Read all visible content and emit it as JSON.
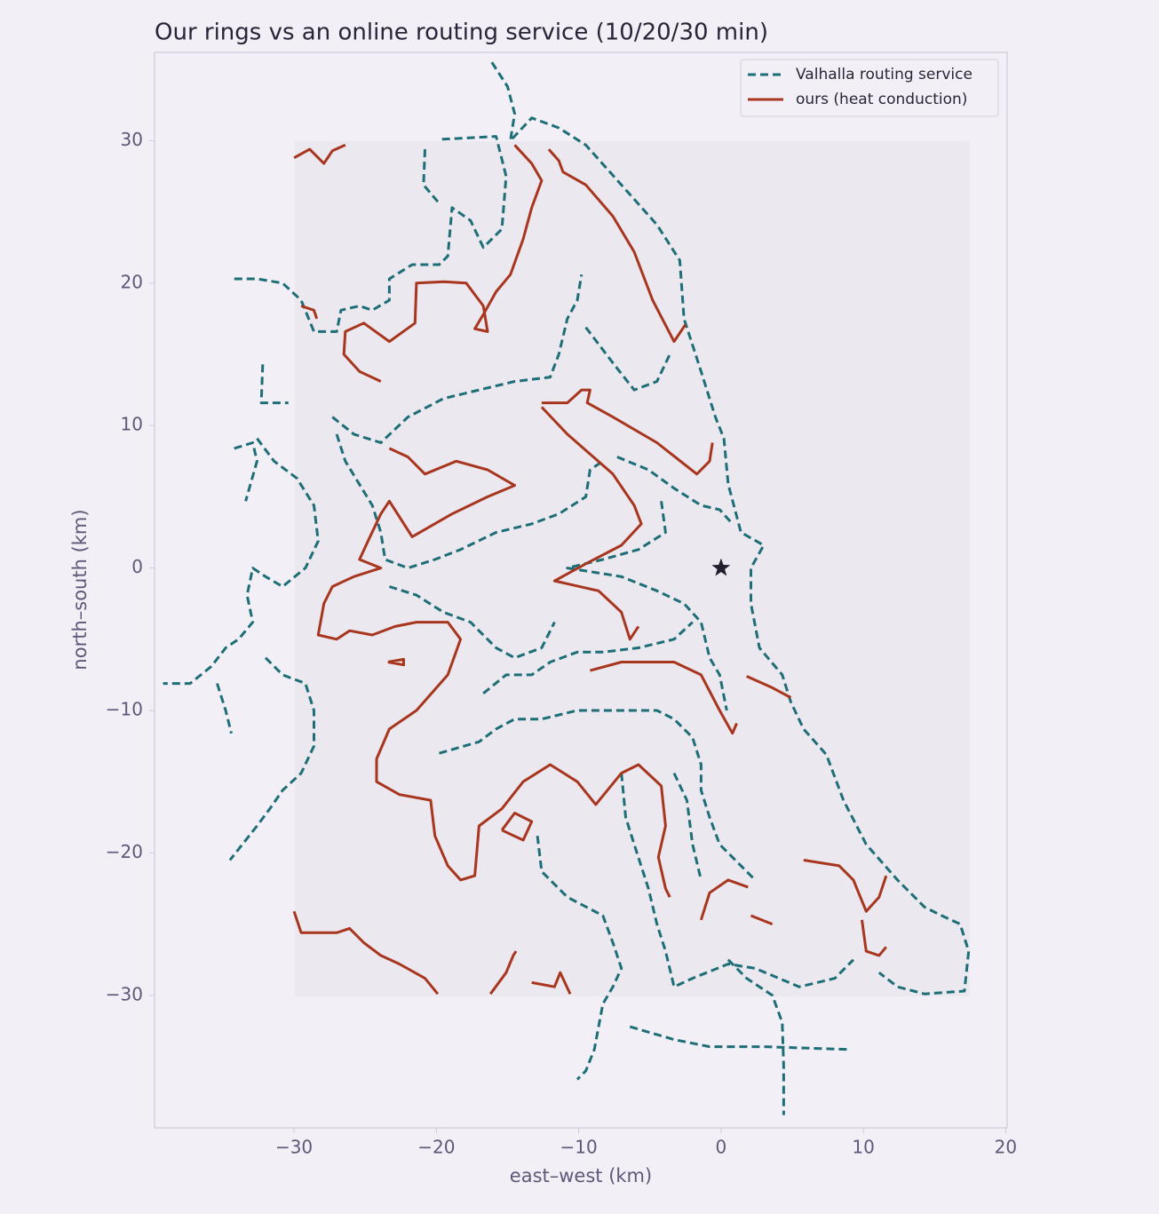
{
  "chart_data": {
    "type": "line",
    "title": "Our rings vs an online routing service (10/20/30 min)",
    "x_label": "east–west (km)",
    "y_label": "north–south (km)",
    "xlim": [
      -39.8,
      20.1
    ],
    "ylim": [
      -39.3,
      36.2
    ],
    "xticks": [
      {
        "value": -30,
        "label": "−30"
      },
      {
        "value": -20,
        "label": "−20"
      },
      {
        "value": -10,
        "label": "−10"
      },
      0,
      10,
      20
    ],
    "yticks": [
      {
        "value": -30,
        "label": "−30"
      },
      {
        "value": -20,
        "label": "−20"
      },
      {
        "value": -10,
        "label": "−10"
      },
      0,
      10,
      20,
      30
    ],
    "grid": false,
    "legend": "upper right",
    "center": {
      "x": 0,
      "y": 0,
      "marker": "star",
      "color": "#231d2e"
    },
    "series": [
      {
        "name": "Valhalla routing service",
        "color": "#1e6e77",
        "style": "dashed",
        "x": [
          -16.1,
          -15,
          -14.5,
          -14.8,
          -13.3,
          -11.4,
          -9.5,
          -7,
          -4.5,
          -2.9,
          -2.6,
          -1.4,
          -0.4,
          0.2,
          0.5,
          1.4,
          3,
          2.1,
          2.1,
          2.7,
          4.3,
          4.9,
          5.8,
          7.4,
          8.6,
          10.2,
          12.4,
          14.3,
          15.5,
          16.8,
          17.4,
          17.1,
          14.3,
          12.4,
          11.1,
          null,
          -19.6,
          -15.8,
          -15.1,
          -15.4,
          -16.7,
          -17.6,
          -18.9,
          -19.2,
          -19.8,
          -21.7,
          -23.3,
          -23.3,
          -24.5,
          -25.4,
          -26.7,
          -27,
          -28.6,
          -29.5,
          -30.8,
          -32.6,
          -34.2,
          null,
          -20.8,
          -20.9,
          -19.8,
          null,
          -32.2,
          -32.3,
          -30.4,
          null,
          -34.2,
          -32.9,
          -32.6,
          -33.4,
          null,
          -32.6,
          -31.4,
          -29.8,
          -28.6,
          -28.3,
          -29.2,
          -30.8,
          -32,
          -32.9,
          -33.3,
          -32.9,
          -33.9,
          -34.8,
          -35.8,
          -37.3,
          -39.2,
          null,
          -35.4,
          -34.8,
          -34.4,
          null,
          -32,
          -30.8,
          -29.2,
          -28.6,
          -28.6,
          -29.5,
          -30.8,
          -31.7,
          -32.6,
          -34.5,
          null,
          -27.3,
          -25.8,
          -23.9,
          -22,
          -19.5,
          -17,
          -14.5,
          -12,
          -11.4,
          -10.8,
          -10.1,
          -9.8,
          null,
          -9.5,
          -7.6,
          -6.1,
          -4.5,
          -3.6,
          null,
          -27,
          -26.4,
          -24.5,
          -23.9,
          -23.6,
          -22,
          -20.1,
          -18.3,
          -15.8,
          -13.3,
          -11.4,
          -9.5,
          -9.2,
          -8.3,
          null,
          -7.3,
          -5.1,
          -3.3,
          -1.4,
          -0.1,
          0.8,
          null,
          -4.2,
          -3.9,
          -5.8,
          -8.3,
          -10.8,
          -7,
          -4.5,
          -2.6,
          -1.4,
          -0.8,
          -0.1,
          0.4,
          null,
          -23.3,
          -21.4,
          -19.5,
          -17.6,
          -15.8,
          -14.5,
          -12.6,
          -11.7,
          null,
          -16.7,
          -15.1,
          -13.3,
          -12,
          -10.1,
          -8.3,
          -5.8,
          -3.3,
          -2,
          null,
          -19.8,
          -17,
          -15.8,
          -14.5,
          -12.6,
          -10.1,
          -7,
          -4.5,
          -3.3,
          -2,
          -1.4,
          -1.4,
          -0.8,
          -0.1,
          1.1,
          2.4,
          null,
          -12.9,
          -12.6,
          -10.8,
          -8.3,
          -7.6,
          -7,
          -7.6,
          -8.3,
          -8.9,
          -9.5,
          -10.1,
          null,
          -6.4,
          -3.3,
          -0.8,
          3,
          9.1,
          null,
          0.5,
          1.8,
          3.6,
          4.3,
          4.4,
          4.4,
          null,
          -7,
          -6.7,
          -6.1,
          -5.1,
          -4.5,
          -3.9,
          -3.3,
          -2,
          0.5,
          2.4,
          5.5,
          8,
          9.3,
          null,
          -3.3,
          -2.4,
          -2,
          -1.4
        ],
        "values": [
          35.5,
          33.8,
          31.9,
          30,
          31.6,
          30.9,
          29.7,
          26.9,
          24.1,
          21.6,
          17.5,
          13.8,
          10.6,
          9.1,
          5.9,
          2.5,
          1.6,
          0,
          -2.5,
          -5.6,
          -7.5,
          -9.4,
          -11.3,
          -13.1,
          -16.3,
          -19.4,
          -21.9,
          -23.8,
          -24.4,
          -25,
          -26.9,
          -29.7,
          -29.9,
          -29.4,
          -28.4,
          null,
          30.1,
          30.3,
          27.5,
          23.8,
          22.5,
          24.4,
          25.3,
          21.9,
          21.3,
          21.3,
          20.3,
          18.8,
          18.1,
          18.4,
          18.1,
          16.6,
          16.6,
          18.8,
          20,
          20.3,
          20.3,
          null,
          29.4,
          26.9,
          25.6,
          null,
          14.3,
          11.6,
          11.6,
          null,
          8.4,
          8.8,
          7.5,
          4.7,
          null,
          9.1,
          7.5,
          6.3,
          4.4,
          1.9,
          0,
          -1.3,
          -0.6,
          0,
          -1.9,
          -3.8,
          -5,
          -5.6,
          -6.9,
          -8.1,
          -8.1,
          null,
          -8.1,
          -10,
          -11.6,
          null,
          -6.3,
          -7.5,
          -8.1,
          -10,
          -12.5,
          -14.4,
          -15.6,
          -16.9,
          -18.1,
          -20.5,
          null,
          10.6,
          9.4,
          8.8,
          10.6,
          11.9,
          12.5,
          13.1,
          13.4,
          15,
          17.5,
          18.8,
          20.6,
          null,
          16.9,
          14.4,
          12.5,
          13.1,
          15,
          null,
          9.4,
          7.5,
          4.4,
          2.5,
          0.6,
          0,
          0.6,
          1.3,
          2.5,
          3.1,
          3.8,
          5,
          6.9,
          7.5,
          null,
          7.8,
          6.9,
          5.6,
          4.4,
          4.1,
          3.1,
          null,
          4.7,
          2.5,
          1.3,
          0.6,
          0,
          -0.6,
          -1.6,
          -2.5,
          -3.8,
          -6.3,
          -7.5,
          -10,
          null,
          -1.3,
          -1.9,
          -3.1,
          -3.8,
          -5.6,
          -6.3,
          -5.6,
          -3.8,
          null,
          -8.8,
          -7.5,
          -7.5,
          -6.6,
          -5.9,
          -5.9,
          -5.6,
          -5,
          -3.8,
          null,
          -13,
          -12.2,
          -11.3,
          -10.6,
          -10.6,
          -10,
          -10,
          -10,
          -10.6,
          -11.9,
          -13.8,
          -15.6,
          -17.5,
          -19.4,
          -20.6,
          -21.9,
          null,
          -18.8,
          -21.3,
          -23.1,
          -24.4,
          -26.3,
          -28.1,
          -29.4,
          -30.6,
          -33.8,
          -35.3,
          -35.9,
          null,
          -32.2,
          -33.1,
          -33.6,
          -33.6,
          -33.8,
          null,
          -27.5,
          -28.8,
          -30,
          -31.9,
          -35,
          -38.4,
          null,
          -14.4,
          -17.5,
          -19.4,
          -22.5,
          -25,
          -26.9,
          -29.4,
          -28.8,
          -27.8,
          -28.1,
          -29.4,
          -28.8,
          -27.5,
          null,
          -14.4,
          -16.3,
          -19.4,
          -21.9
        ]
      },
      {
        "name": "ours (heat conduction)",
        "color": "#a8361f",
        "style": "solid",
        "x": [
          -30,
          -28.9,
          -27.9,
          -27.3,
          -26.4,
          null,
          -14.5,
          -13.3,
          -12.6,
          -13.3,
          -13.9,
          -14.8,
          -15.8,
          -16.7,
          -17.3,
          -16.4,
          -16.7,
          -17.9,
          -19.5,
          -21.4,
          -21.5,
          -23.3,
          -25.1,
          -26.4,
          -26.5,
          -25.4,
          -23.9,
          null,
          -29.5,
          -28.6,
          -28.4,
          null,
          -12.1,
          -11.4,
          -11.1,
          -9.5,
          -7.6,
          -6.1,
          -4.8,
          -3.3,
          -2.5,
          null,
          -12.6,
          -10.8,
          -9.8,
          -9.2,
          -9.4,
          -7.6,
          -4.5,
          -1.7,
          -0.8,
          -0.6,
          null,
          -12.6,
          -10.8,
          -7.6,
          -6.1,
          -5.6,
          -7,
          -9.5,
          -11.7,
          -8.6,
          -7,
          -6.4,
          -5.8,
          null,
          -23.3,
          -22,
          -20.8,
          -18.6,
          -16.4,
          -14.5,
          -16.4,
          -18.9,
          -21.7,
          -23.3,
          -23.9,
          -24.8,
          -25.4,
          -23.9,
          -25.8,
          -27.3,
          -27.9,
          -28.3,
          -27,
          -26.1,
          -24.5,
          -22.9,
          -21.4,
          -19.2,
          -18.3,
          -19.2,
          -21.4,
          -23.3,
          -24.2,
          -24.2,
          -22.6,
          -20.4,
          -20.1,
          -19.2,
          -18.3,
          -17.3,
          -17,
          -15.4,
          -13.9,
          -12,
          -10.1,
          -8.8,
          -7,
          -5.8,
          -4.2,
          -3.9,
          -4.4,
          -3.9,
          -3.6,
          null,
          -15.4,
          -13.9,
          -13.3,
          -14.5,
          -15.4,
          null,
          -23.4,
          -22.3,
          -22.3,
          -23.4,
          null,
          -9.2,
          -7,
          -3.3,
          -1.4,
          -0.1,
          0.8,
          1.1,
          null,
          1.8,
          3.6,
          4.9,
          null,
          -30,
          -29.5,
          -27,
          -26.1,
          -25.1,
          -23.9,
          -22.6,
          -20.8,
          -19.9,
          null,
          -16.2,
          -15.1,
          -14.6,
          -14.4,
          null,
          -13.3,
          -11.7,
          -11.3,
          -10.6,
          null,
          -1.4,
          -0.8,
          0.5,
          1.9,
          null,
          2.1,
          3.6,
          null,
          5.8,
          8.3,
          9.3,
          10.2,
          11.1,
          11.6,
          null,
          9.9,
          10.2,
          11.1,
          11.6
        ],
        "values": [
          28.8,
          29.4,
          28.4,
          29.3,
          29.7,
          null,
          29.7,
          28.4,
          27.2,
          25.3,
          23.1,
          20.6,
          19.4,
          17.8,
          16.8,
          16.6,
          18.4,
          20,
          20.1,
          20,
          17.2,
          15.9,
          17.2,
          16.6,
          15,
          13.8,
          13.1,
          null,
          18.4,
          18.1,
          17.5,
          null,
          29.4,
          28.6,
          27.8,
          26.9,
          24.7,
          22.2,
          18.8,
          15.9,
          17.1,
          null,
          11.6,
          11.6,
          12.5,
          12.5,
          11.6,
          10.6,
          8.8,
          6.6,
          7.5,
          8.8,
          null,
          11.3,
          9.4,
          6.6,
          4.4,
          3.1,
          1.6,
          0.3,
          -0.9,
          -1.6,
          -3.1,
          -5,
          -4.1,
          null,
          8.4,
          7.8,
          6.6,
          7.5,
          6.9,
          5.8,
          5,
          3.8,
          2.2,
          4.7,
          3.8,
          1.9,
          0.6,
          0,
          -0.6,
          -1.3,
          -2.5,
          -4.7,
          -5,
          -4.4,
          -4.7,
          -4.1,
          -3.8,
          -3.8,
          -5,
          -7.5,
          -10,
          -11.3,
          -13.4,
          -15,
          -15.9,
          -16.3,
          -18.8,
          -20.9,
          -21.9,
          -21.6,
          -18.1,
          -16.9,
          -15,
          -13.8,
          -15,
          -16.6,
          -14.4,
          -13.8,
          -15.3,
          -18.1,
          -20.3,
          -22.5,
          -23.1,
          null,
          -18.4,
          -19.1,
          -17.8,
          -17.2,
          -18.4,
          null,
          -6.6,
          -6.4,
          -6.8,
          -6.6,
          null,
          -7.2,
          -6.6,
          -6.6,
          -7.5,
          -10,
          -11.6,
          -10.9,
          null,
          -7.6,
          -8.4,
          -9.1,
          null,
          -24.1,
          -25.6,
          -25.6,
          -25.3,
          -26.3,
          -27.2,
          -27.8,
          -28.8,
          -29.9,
          null,
          -29.9,
          -28.4,
          -27.2,
          -26.9,
          null,
          -29.1,
          -29.4,
          -28.4,
          -29.9,
          null,
          -24.7,
          -22.8,
          -21.9,
          -22.4,
          null,
          -24.4,
          -25,
          null,
          -20.5,
          -20.9,
          -21.9,
          -24.1,
          -23.1,
          -21.6,
          null,
          -24.7,
          -26.9,
          -27.2,
          -26.6
        ]
      }
    ]
  }
}
